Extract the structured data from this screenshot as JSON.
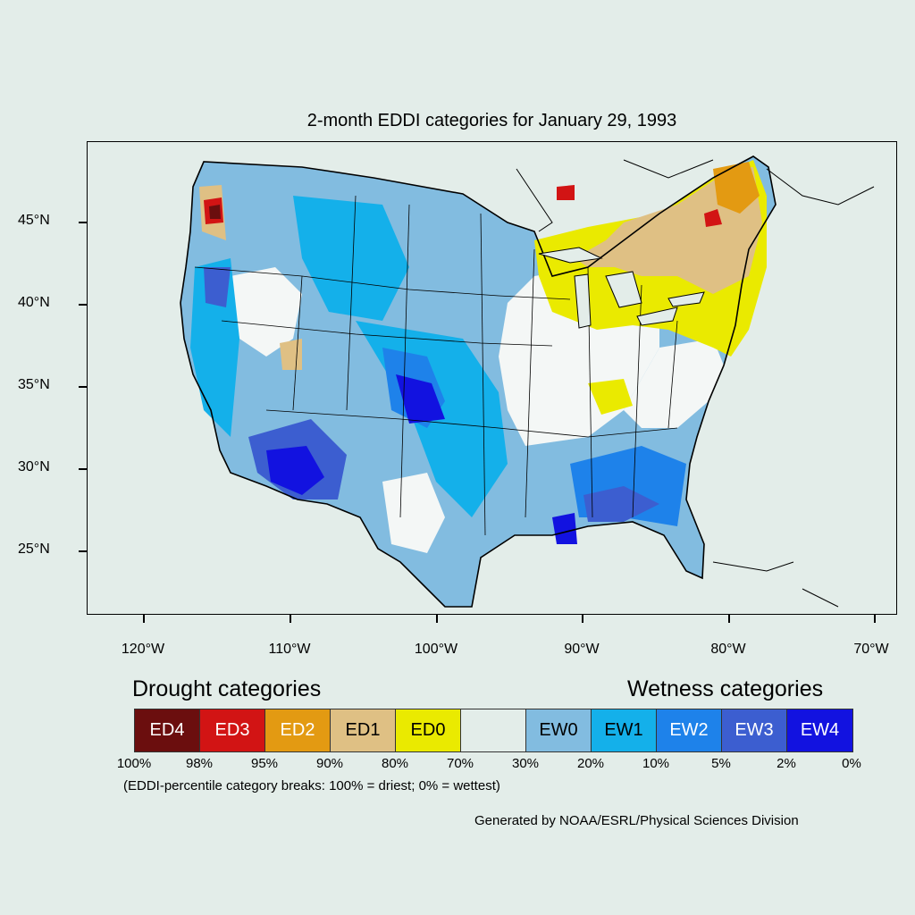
{
  "title": "2-month EDDI categories for January 29, 1993",
  "y_axis": {
    "labels": [
      "45°N",
      "40°N",
      "35°N",
      "30°N",
      "25°N"
    ]
  },
  "x_axis": {
    "labels": [
      "120°W",
      "110°W",
      "100°W",
      "90°W",
      "80°W",
      "70°W"
    ]
  },
  "legend": {
    "drought_heading": "Drought categories",
    "wetness_heading": "Wetness categories",
    "categories": [
      {
        "label": "ED4",
        "color": "#6b0e0e",
        "text_color": "#ffffff"
      },
      {
        "label": "ED3",
        "color": "#d21414",
        "text_color": "#ffffff"
      },
      {
        "label": "ED2",
        "color": "#e39a12",
        "text_color": "#ffffff"
      },
      {
        "label": "ED1",
        "color": "#dfc084",
        "text_color": "#000000"
      },
      {
        "label": "ED0",
        "color": "#eaea00",
        "text_color": "#000000"
      },
      {
        "label": "",
        "color": "#e3ede9",
        "text_color": "#000000"
      },
      {
        "label": "EW0",
        "color": "#82bce0",
        "text_color": "#000000"
      },
      {
        "label": "EW1",
        "color": "#14b0ea",
        "text_color": "#000000"
      },
      {
        "label": "EW2",
        "color": "#1e82ea",
        "text_color": "#ffffff"
      },
      {
        "label": "EW3",
        "color": "#3c5ed0",
        "text_color": "#ffffff"
      },
      {
        "label": "EW4",
        "color": "#1212e0",
        "text_color": "#ffffff"
      }
    ],
    "breaks": [
      "100%",
      "98%",
      "95%",
      "90%",
      "80%",
      "70%",
      "30%",
      "20%",
      "10%",
      "5%",
      "2%",
      "0%"
    ],
    "note": "(EDDI-percentile category breaks: 100% = driest; 0% = wettest)"
  },
  "credit": "Generated by NOAA/ESRL/Physical Sciences Division"
}
